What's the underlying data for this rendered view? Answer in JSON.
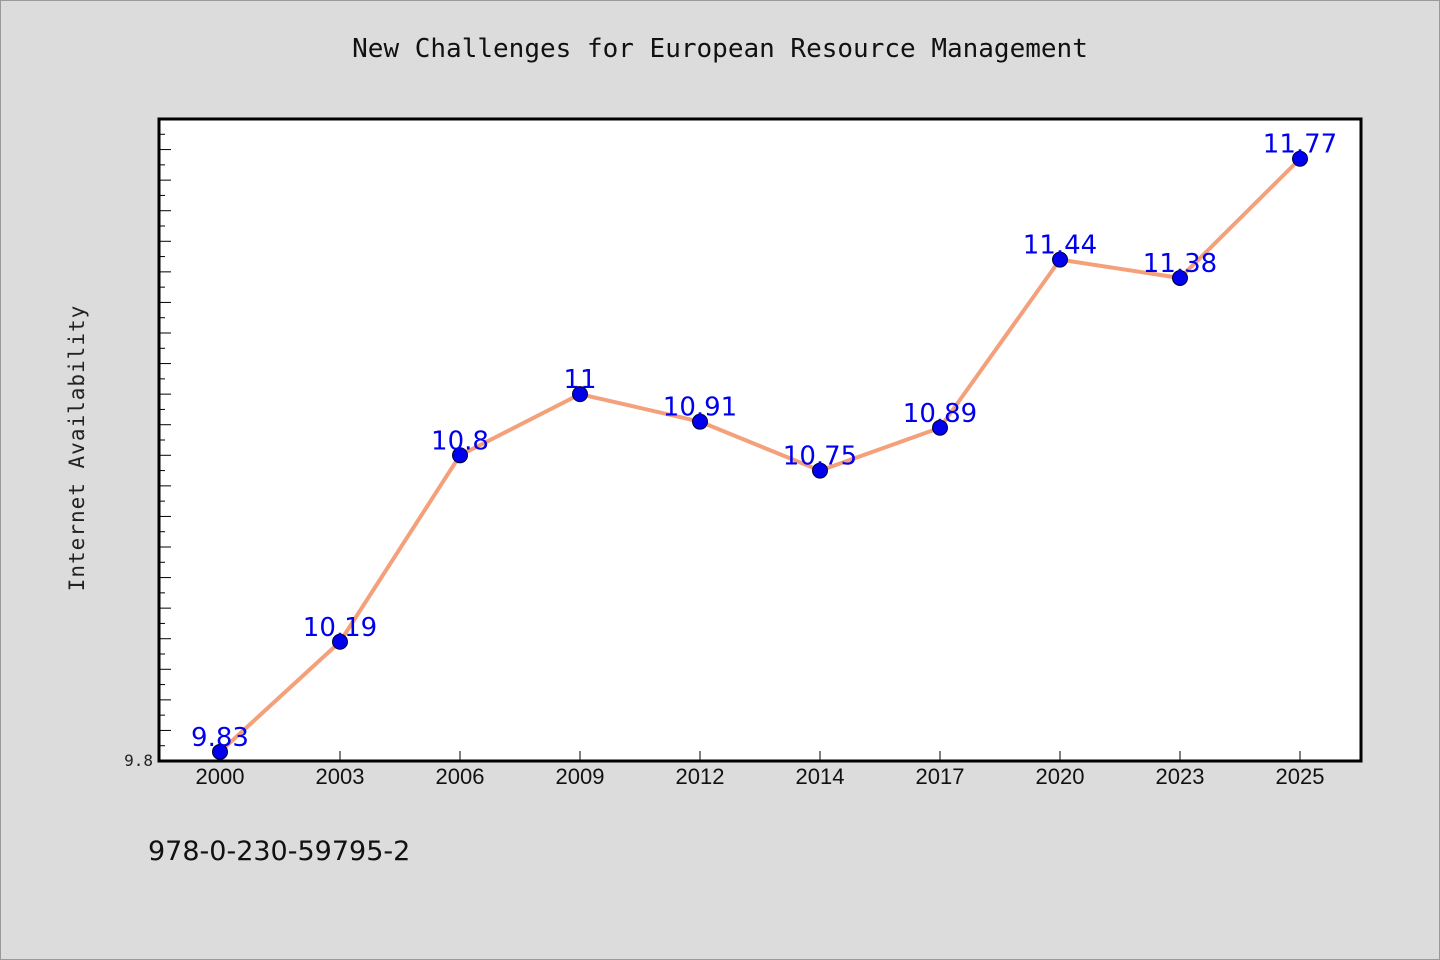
{
  "chart_data": {
    "type": "line",
    "title": "New Challenges for European Resource Management",
    "xlabel": "",
    "ylabel": "Internet Availability",
    "categories": [
      "2000",
      "2003",
      "2006",
      "2009",
      "2012",
      "2014",
      "2017",
      "2020",
      "2023",
      "2025"
    ],
    "series": [
      {
        "values": [
          9.83,
          10.19,
          10.8,
          11,
          10.91,
          10.75,
          10.89,
          11.44,
          11.38,
          11.77
        ],
        "value_labels": [
          "9.83",
          "10.19",
          "10.8",
          "11",
          "10.91",
          "10.75",
          "10.89",
          "11.44",
          "11.38",
          "11.77"
        ],
        "line_color": "#f4a07a",
        "marker_color": "#0000ee",
        "label_color": "#0000ee"
      }
    ],
    "ylim": [
      9.8,
      11.9
    ],
    "y_tick_labels": [
      "9.8"
    ],
    "grid": false,
    "legend": "none"
  },
  "footer": {
    "isbn": "978-0-230-59795-2"
  }
}
